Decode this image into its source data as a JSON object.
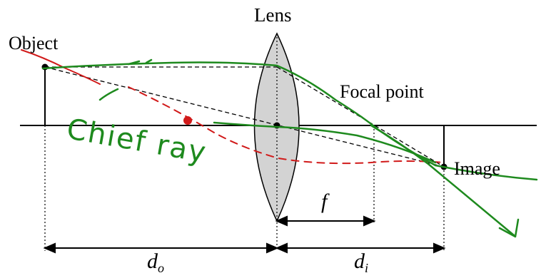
{
  "labels": {
    "lens": "Lens",
    "object": "Object",
    "focal_point": "Focal point",
    "image": "Image",
    "f": "f",
    "d_o_main": "d",
    "d_o_sub": "o",
    "d_i_main": "d",
    "d_i_sub": "i"
  },
  "annotations": {
    "chief_ray": "Chief ray"
  },
  "colors": {
    "lens_fill": "#d3d3d3",
    "handwriting_green": "#1e8a1e",
    "handwriting_red": "#d11a1a",
    "line": "#000000"
  }
}
